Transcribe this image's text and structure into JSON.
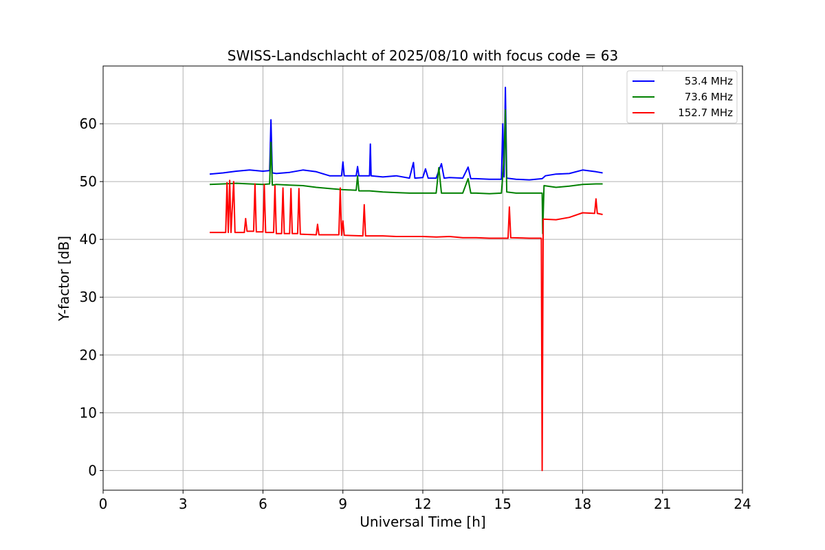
{
  "chart_data": {
    "type": "line",
    "title": "SWISS-Landschlacht of 2025/08/10 with focus code = 63",
    "xlabel": "Universal Time [h]",
    "ylabel": "Y-factor [dB]",
    "xlim": [
      0,
      24
    ],
    "ylim": [
      -3.4,
      70
    ],
    "xticks": [
      "0",
      "3",
      "6",
      "9",
      "12",
      "15",
      "18",
      "21",
      "24"
    ],
    "yticks": [
      "0",
      "10",
      "20",
      "30",
      "40",
      "50",
      "60"
    ],
    "grid": true,
    "legend_position": "top-right",
    "series": [
      {
        "name": "53.4 MHz",
        "color": "#0000ff",
        "points": [
          [
            4.0,
            51.3
          ],
          [
            4.5,
            51.5
          ],
          [
            5.0,
            51.8
          ],
          [
            5.5,
            52.0
          ],
          [
            6.0,
            51.8
          ],
          [
            6.25,
            51.9
          ],
          [
            6.3,
            60.7
          ],
          [
            6.35,
            51.5
          ],
          [
            6.5,
            51.4
          ],
          [
            7.0,
            51.6
          ],
          [
            7.5,
            52.0
          ],
          [
            8.0,
            51.7
          ],
          [
            8.5,
            51.0
          ],
          [
            8.95,
            51.0
          ],
          [
            9.0,
            53.4
          ],
          [
            9.05,
            51.0
          ],
          [
            9.5,
            51.0
          ],
          [
            9.55,
            52.6
          ],
          [
            9.6,
            51.0
          ],
          [
            10.0,
            51.0
          ],
          [
            10.03,
            56.5
          ],
          [
            10.06,
            51.0
          ],
          [
            10.5,
            50.8
          ],
          [
            11.0,
            51.0
          ],
          [
            11.5,
            50.6
          ],
          [
            11.65,
            53.3
          ],
          [
            11.7,
            50.6
          ],
          [
            12.0,
            50.7
          ],
          [
            12.1,
            52.2
          ],
          [
            12.2,
            50.6
          ],
          [
            12.5,
            50.6
          ],
          [
            12.7,
            53.1
          ],
          [
            12.8,
            50.6
          ],
          [
            13.0,
            50.7
          ],
          [
            13.5,
            50.6
          ],
          [
            13.7,
            52.5
          ],
          [
            13.8,
            50.5
          ],
          [
            14.0,
            50.5
          ],
          [
            14.5,
            50.4
          ],
          [
            14.95,
            50.4
          ],
          [
            15.0,
            60.0
          ],
          [
            15.05,
            50.8
          ],
          [
            15.1,
            66.3
          ],
          [
            15.15,
            50.6
          ],
          [
            15.5,
            50.4
          ],
          [
            16.0,
            50.3
          ],
          [
            16.48,
            50.5
          ],
          [
            16.6,
            51.0
          ],
          [
            17.0,
            51.3
          ],
          [
            17.5,
            51.4
          ],
          [
            18.0,
            52.0
          ],
          [
            18.5,
            51.7
          ],
          [
            18.75,
            51.5
          ]
        ]
      },
      {
        "name": "73.6 MHz",
        "color": "#008000",
        "points": [
          [
            4.0,
            49.5
          ],
          [
            4.5,
            49.6
          ],
          [
            5.0,
            49.7
          ],
          [
            5.5,
            49.6
          ],
          [
            6.0,
            49.5
          ],
          [
            6.25,
            49.6
          ],
          [
            6.3,
            56.8
          ],
          [
            6.35,
            49.4
          ],
          [
            6.5,
            49.5
          ],
          [
            7.0,
            49.4
          ],
          [
            7.5,
            49.3
          ],
          [
            8.0,
            49.0
          ],
          [
            8.5,
            48.8
          ],
          [
            9.0,
            48.6
          ],
          [
            9.5,
            48.5
          ],
          [
            9.55,
            51.0
          ],
          [
            9.6,
            48.4
          ],
          [
            10.0,
            48.4
          ],
          [
            10.5,
            48.2
          ],
          [
            11.0,
            48.1
          ],
          [
            11.5,
            48.0
          ],
          [
            12.0,
            48.0
          ],
          [
            12.5,
            48.0
          ],
          [
            12.6,
            52.4
          ],
          [
            12.7,
            48.0
          ],
          [
            13.0,
            48.0
          ],
          [
            13.5,
            48.0
          ],
          [
            13.7,
            50.5
          ],
          [
            13.8,
            48.0
          ],
          [
            14.0,
            48.0
          ],
          [
            14.5,
            47.9
          ],
          [
            14.95,
            48.0
          ],
          [
            15.05,
            54.0
          ],
          [
            15.1,
            62.4
          ],
          [
            15.15,
            48.2
          ],
          [
            15.5,
            48.0
          ],
          [
            16.0,
            48.0
          ],
          [
            16.48,
            48.0
          ],
          [
            16.5,
            41.0
          ],
          [
            16.55,
            49.3
          ],
          [
            17.0,
            49.0
          ],
          [
            17.5,
            49.2
          ],
          [
            18.0,
            49.5
          ],
          [
            18.5,
            49.6
          ],
          [
            18.75,
            49.6
          ]
        ]
      },
      {
        "name": "152.7 MHz",
        "color": "#ff0000",
        "points": [
          [
            4.0,
            41.2
          ],
          [
            4.6,
            41.2
          ],
          [
            4.65,
            49.8
          ],
          [
            4.7,
            41.2
          ],
          [
            4.75,
            50.2
          ],
          [
            4.8,
            41.2
          ],
          [
            4.9,
            50.0
          ],
          [
            4.95,
            41.2
          ],
          [
            5.3,
            41.2
          ],
          [
            5.35,
            43.6
          ],
          [
            5.4,
            41.4
          ],
          [
            5.65,
            41.4
          ],
          [
            5.7,
            49.6
          ],
          [
            5.75,
            41.3
          ],
          [
            6.0,
            41.3
          ],
          [
            6.05,
            49.5
          ],
          [
            6.1,
            41.2
          ],
          [
            6.4,
            41.2
          ],
          [
            6.45,
            49.3
          ],
          [
            6.5,
            41.0
          ],
          [
            6.7,
            41.0
          ],
          [
            6.75,
            48.9
          ],
          [
            6.8,
            41.0
          ],
          [
            7.0,
            41.0
          ],
          [
            7.05,
            48.8
          ],
          [
            7.1,
            41.0
          ],
          [
            7.3,
            41.0
          ],
          [
            7.35,
            48.8
          ],
          [
            7.4,
            40.9
          ],
          [
            8.0,
            40.8
          ],
          [
            8.05,
            42.6
          ],
          [
            8.1,
            40.8
          ],
          [
            8.85,
            40.8
          ],
          [
            8.9,
            48.9
          ],
          [
            8.95,
            40.7
          ],
          [
            9.0,
            43.2
          ],
          [
            9.05,
            40.7
          ],
          [
            9.75,
            40.6
          ],
          [
            9.8,
            46.0
          ],
          [
            9.85,
            40.6
          ],
          [
            10.5,
            40.6
          ],
          [
            11.0,
            40.5
          ],
          [
            12.0,
            40.5
          ],
          [
            12.5,
            40.4
          ],
          [
            13.0,
            40.5
          ],
          [
            13.5,
            40.3
          ],
          [
            14.0,
            40.3
          ],
          [
            14.5,
            40.2
          ],
          [
            15.0,
            40.2
          ],
          [
            15.2,
            40.2
          ],
          [
            15.25,
            45.6
          ],
          [
            15.3,
            40.3
          ],
          [
            16.0,
            40.2
          ],
          [
            16.45,
            40.2
          ],
          [
            16.48,
            0.0
          ],
          [
            16.52,
            43.5
          ],
          [
            17.0,
            43.4
          ],
          [
            17.5,
            43.8
          ],
          [
            18.0,
            44.6
          ],
          [
            18.45,
            44.5
          ],
          [
            18.5,
            47.0
          ],
          [
            18.55,
            44.5
          ],
          [
            18.75,
            44.3
          ]
        ]
      }
    ]
  }
}
